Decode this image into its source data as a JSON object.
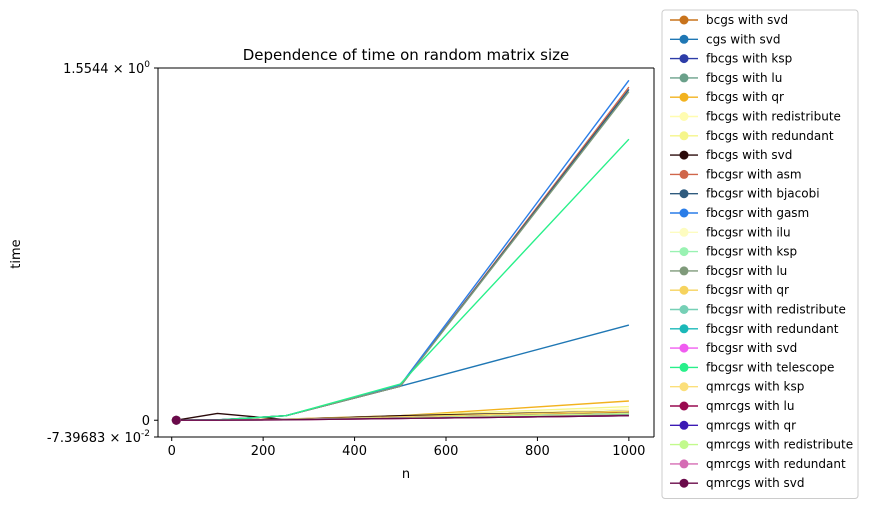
{
  "chart_data": {
    "type": "line",
    "title": "Dependence of time on random matrix size",
    "xlabel": "n",
    "ylabel": "time",
    "xlim": [
      -30,
      1055
    ],
    "ylim": [
      -0.0739683,
      1.5544
    ],
    "xticks": [
      0,
      200,
      400,
      600,
      800,
      1000
    ],
    "yticks": [
      {
        "value": 1.5544,
        "base": "1.5544",
        "exp": "0"
      },
      {
        "value": 0,
        "plain": "0"
      },
      {
        "value": -0.0739683,
        "base": "-7.39683",
        "exp": "-2"
      }
    ],
    "x": [
      10,
      100,
      250,
      500,
      1000
    ],
    "grid": false,
    "legend_position": "outside-right",
    "series": [
      {
        "name": "bcgs with svd",
        "color": "#c8731c",
        "values": [
          0.0,
          0.001,
          0.005,
          0.02,
          0.035
        ]
      },
      {
        "name": "cgs with svd",
        "color": "#1f77b4",
        "values": [
          0.0,
          0.002,
          0.02,
          0.15,
          0.42
        ]
      },
      {
        "name": "fbcgs with ksp",
        "color": "#2d3da8",
        "values": [
          0.0,
          0.0,
          0.003,
          0.008,
          0.02
        ]
      },
      {
        "name": "fbcgs with lu",
        "color": "#6aa08a",
        "values": [
          0.0,
          0.0,
          0.003,
          0.01,
          0.025
        ]
      },
      {
        "name": "fbcgs with qr",
        "color": "#f2b21e",
        "values": [
          0.0,
          0.0,
          0.004,
          0.02,
          0.085
        ]
      },
      {
        "name": "fbcgs with redistribute",
        "color": "#fffcb0",
        "values": [
          0.0,
          0.0,
          0.003,
          0.015,
          0.05
        ]
      },
      {
        "name": "fbcgs with redundant",
        "color": "#f5f58a",
        "values": [
          0.0,
          0.0,
          0.004,
          0.02,
          0.06
        ]
      },
      {
        "name": "fbcgs with svd",
        "color": "#2a0a0a",
        "values": [
          0.0,
          0.03,
          0.003,
          0.02,
          0.04
        ]
      },
      {
        "name": "fbcgsr with asm",
        "color": "#d0664a",
        "values": [
          0.0,
          0.001,
          0.02,
          0.15,
          1.47
        ]
      },
      {
        "name": "fbcgsr with bjacobi",
        "color": "#2f5b7e",
        "values": [
          0.0,
          0.001,
          0.02,
          0.15,
          1.46
        ]
      },
      {
        "name": "fbcgsr with gasm",
        "color": "#2a7de8",
        "values": [
          0.0,
          0.001,
          0.02,
          0.155,
          1.5
        ]
      },
      {
        "name": "fbcgsr with ilu",
        "color": "#fdfcc0",
        "values": [
          0.0,
          0.0,
          0.003,
          0.01,
          0.03
        ]
      },
      {
        "name": "fbcgsr with ksp",
        "color": "#99f2b2",
        "values": [
          0.0,
          0.0,
          0.003,
          0.01,
          0.03
        ]
      },
      {
        "name": "fbcgsr with lu",
        "color": "#7f9a7a",
        "values": [
          0.0,
          0.001,
          0.02,
          0.15,
          1.45
        ]
      },
      {
        "name": "fbcgsr with qr",
        "color": "#f6d35e",
        "values": [
          0.0,
          0.0,
          0.003,
          0.015,
          0.04
        ]
      },
      {
        "name": "fbcgsr with redistribute",
        "color": "#76d0b6",
        "values": [
          0.0,
          0.0,
          0.003,
          0.01,
          0.03
        ]
      },
      {
        "name": "fbcgsr with redundant",
        "color": "#1ab8b8",
        "values": [
          0.0,
          0.0,
          0.003,
          0.01,
          0.03
        ]
      },
      {
        "name": "fbcgsr with svd",
        "color": "#f05cf0",
        "values": [
          0.0,
          0.0,
          0.003,
          0.01,
          0.03
        ]
      },
      {
        "name": "fbcgsr with telescope",
        "color": "#28f08a",
        "values": [
          0.0,
          0.001,
          0.02,
          0.16,
          1.24
        ]
      },
      {
        "name": "qmrcgs with ksp",
        "color": "#fbdf7a",
        "values": [
          0.0,
          0.0,
          0.003,
          0.01,
          0.03
        ]
      },
      {
        "name": "qmrcgs with lu",
        "color": "#990a50",
        "values": [
          0.0,
          0.0,
          0.002,
          0.008,
          0.02
        ]
      },
      {
        "name": "qmrcgs with qr",
        "color": "#3c1ab5",
        "values": [
          0.0,
          0.0,
          0.003,
          0.01,
          0.03
        ]
      },
      {
        "name": "qmrcgs with redistribute",
        "color": "#c2fa8c",
        "values": [
          0.0,
          0.0,
          0.003,
          0.01,
          0.03
        ]
      },
      {
        "name": "qmrcgs with redundant",
        "color": "#d56cb4",
        "values": [
          0.0,
          0.0,
          0.002,
          0.008,
          0.02
        ]
      },
      {
        "name": "qmrcgs with svd",
        "color": "#6a0a4a",
        "values": [
          0.0,
          0.0,
          0.002,
          0.008,
          0.02
        ]
      }
    ]
  }
}
